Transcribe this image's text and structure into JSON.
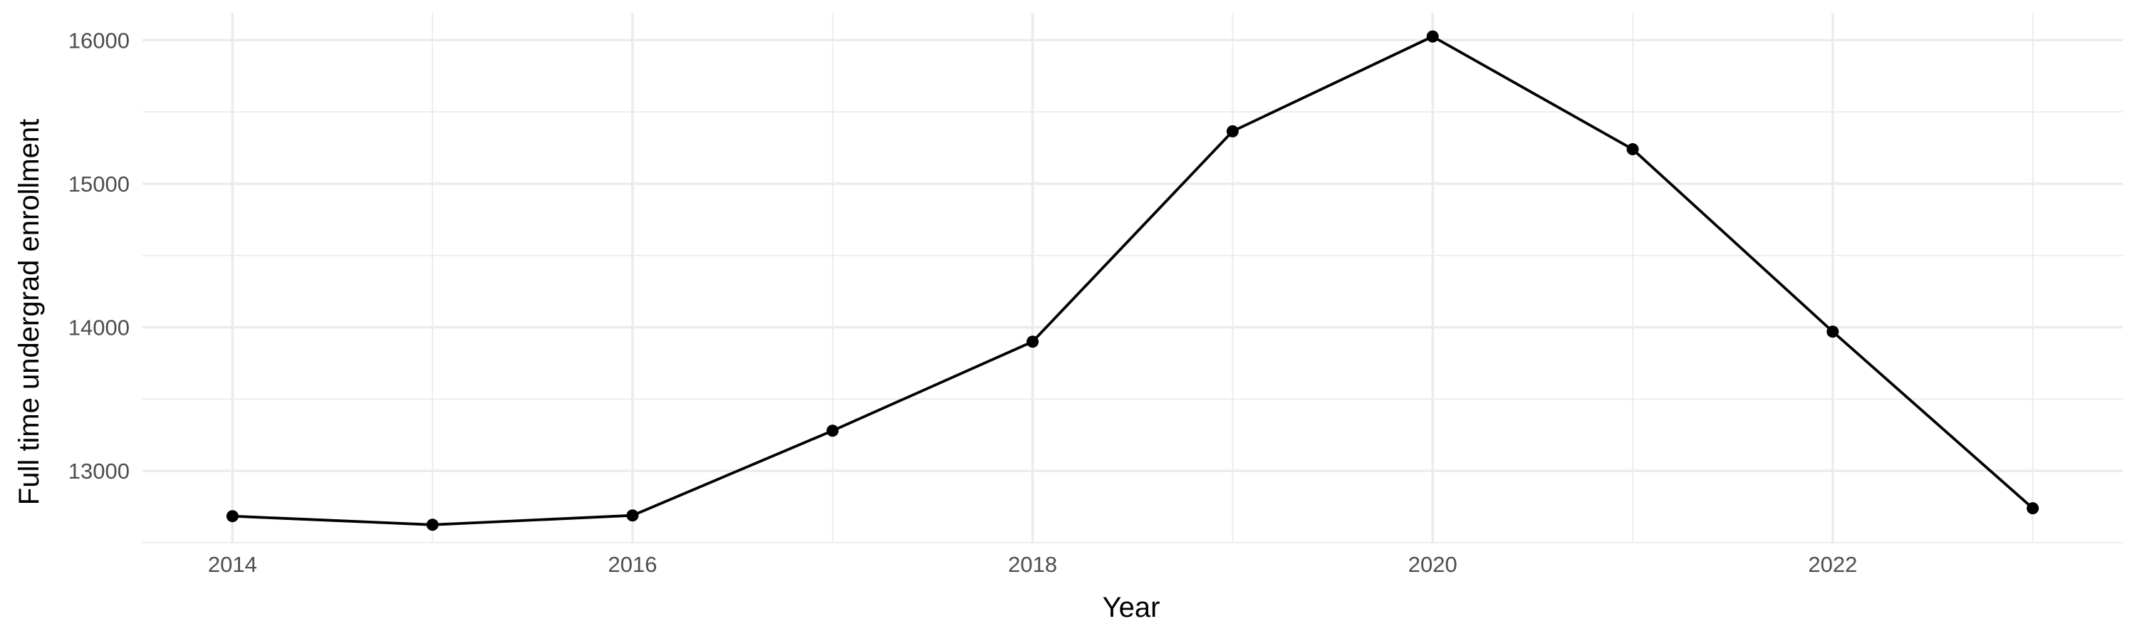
{
  "chart_data": {
    "type": "line",
    "title": "",
    "xlabel": "Year",
    "ylabel": "Full time undergrad enrollment",
    "x": [
      2014,
      2015,
      2016,
      2017,
      2018,
      2019,
      2020,
      2021,
      2022,
      2023
    ],
    "series": [
      {
        "values": [
          12685,
          12625,
          12690,
          13280,
          13900,
          15365,
          16025,
          15240,
          13970,
          12740
        ],
        "color": "#000000"
      }
    ],
    "xlim": [
      2013.55,
      2023.45
    ],
    "ylim": [
      12500,
      16190
    ],
    "x_ticks": [
      2014,
      2016,
      2018,
      2020,
      2022
    ],
    "y_ticks": [
      13000,
      14000,
      15000,
      16000
    ],
    "x_tick_labels": [
      "2014",
      "2016",
      "2018",
      "2020",
      "2022"
    ],
    "y_tick_labels": [
      "13000",
      "14000",
      "15000",
      "16000"
    ],
    "grid": true,
    "legend": "none"
  }
}
